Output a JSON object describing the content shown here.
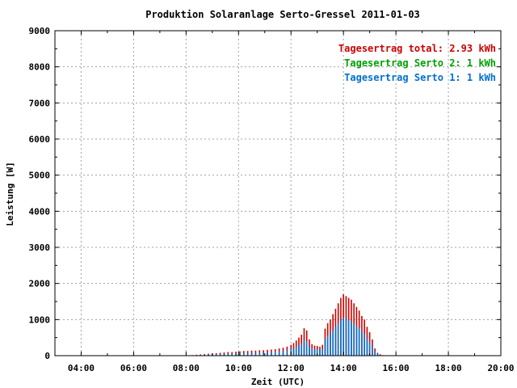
{
  "chart_data": {
    "type": "bar",
    "title": "Produktion Solaranlage Serto-Gressel 2011-01-03",
    "xlabel": "Zeit (UTC)",
    "ylabel": "Leistung [W]",
    "xlim": [
      3.0,
      20.0
    ],
    "ylim": [
      0,
      9000
    ],
    "x_ticks": [
      {
        "value": 4,
        "label": "04:00"
      },
      {
        "value": 6,
        "label": "06:00"
      },
      {
        "value": 8,
        "label": "08:00"
      },
      {
        "value": 10,
        "label": "10:00"
      },
      {
        "value": 12,
        "label": "12:00"
      },
      {
        "value": 14,
        "label": "14:00"
      },
      {
        "value": 16,
        "label": "16:00"
      },
      {
        "value": 18,
        "label": "18:00"
      },
      {
        "value": 20,
        "label": "20:00"
      }
    ],
    "y_ticks": [
      0,
      1000,
      2000,
      3000,
      4000,
      5000,
      6000,
      7000,
      8000,
      9000
    ],
    "grid": true,
    "legend_position": "top-right",
    "legend": [
      {
        "label": "Tagesertrag total:",
        "value": "2.93 kWh",
        "color": "#cc0000"
      },
      {
        "label": "Tagesertrag Serto 2:",
        "value": "1 kWh",
        "color": "#00a000"
      },
      {
        "label": "Tagesertrag Serto 1:",
        "value": "1 kWh",
        "color": "#0070d0"
      }
    ],
    "series": [
      {
        "name": "Tagesertrag total",
        "color": "#cc0000",
        "x": [
          8.25,
          8.4,
          8.55,
          8.7,
          8.85,
          9.0,
          9.15,
          9.3,
          9.45,
          9.6,
          9.75,
          9.9,
          10.05,
          10.2,
          10.35,
          10.5,
          10.65,
          10.8,
          10.95,
          11.1,
          11.25,
          11.4,
          11.55,
          11.7,
          11.85,
          12.0,
          12.1,
          12.2,
          12.3,
          12.4,
          12.5,
          12.6,
          12.7,
          12.8,
          12.9,
          13.0,
          13.1,
          13.2,
          13.3,
          13.4,
          13.5,
          13.6,
          13.7,
          13.8,
          13.9,
          14.0,
          14.1,
          14.2,
          14.3,
          14.4,
          14.5,
          14.6,
          14.7,
          14.8,
          14.9,
          15.0,
          15.1,
          15.2,
          15.3,
          15.4,
          15.5
        ],
        "values": [
          15,
          25,
          35,
          45,
          55,
          60,
          70,
          80,
          90,
          100,
          100,
          110,
          120,
          130,
          130,
          140,
          140,
          150,
          150,
          160,
          170,
          180,
          200,
          220,
          250,
          300,
          350,
          420,
          500,
          580,
          760,
          700,
          450,
          320,
          280,
          270,
          250,
          300,
          750,
          900,
          1000,
          1150,
          1300,
          1450,
          1600,
          1700,
          1650,
          1600,
          1550,
          1450,
          1350,
          1250,
          1100,
          1000,
          800,
          650,
          450,
          200,
          80,
          40,
          15
        ]
      },
      {
        "name": "Tagesertrag Serto 1",
        "color": "#0070d0",
        "x": [
          8.25,
          8.4,
          8.55,
          8.7,
          8.85,
          9.0,
          9.15,
          9.3,
          9.45,
          9.6,
          9.75,
          9.9,
          10.05,
          10.2,
          10.35,
          10.5,
          10.65,
          10.8,
          10.95,
          11.1,
          11.25,
          11.4,
          11.55,
          11.7,
          11.85,
          12.0,
          12.1,
          12.2,
          12.3,
          12.4,
          12.5,
          12.6,
          12.7,
          12.8,
          12.9,
          13.0,
          13.1,
          13.2,
          13.3,
          13.4,
          13.5,
          13.6,
          13.7,
          13.8,
          13.9,
          14.0,
          14.1,
          14.2,
          14.3,
          14.4,
          14.5,
          14.6,
          14.7,
          14.8,
          14.9,
          15.0,
          15.1,
          15.2,
          15.3,
          15.4,
          15.5
        ],
        "values": [
          10,
          15,
          20,
          25,
          30,
          35,
          40,
          45,
          50,
          55,
          60,
          65,
          70,
          75,
          75,
          80,
          80,
          85,
          90,
          95,
          100,
          110,
          120,
          130,
          150,
          180,
          200,
          240,
          280,
          320,
          420,
          400,
          260,
          200,
          180,
          170,
          160,
          190,
          450,
          550,
          620,
          700,
          800,
          900,
          1000,
          1050,
          1020,
          990,
          950,
          880,
          820,
          760,
          680,
          600,
          480,
          380,
          260,
          120,
          50,
          25,
          10
        ]
      }
    ]
  }
}
